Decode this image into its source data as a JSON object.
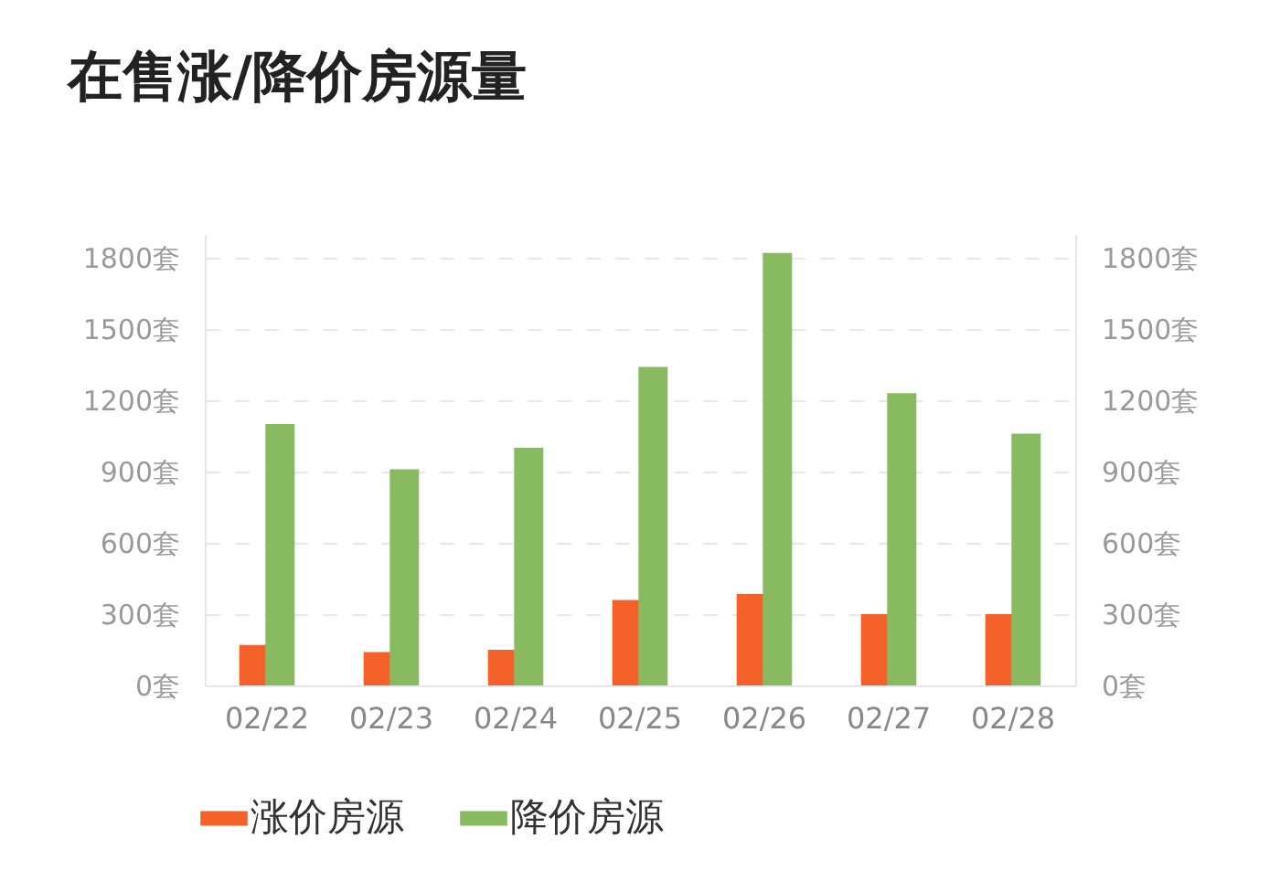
{
  "chart_data": {
    "type": "bar",
    "title": "在售涨/降价房源量",
    "categories": [
      "02/22",
      "02/23",
      "02/24",
      "02/25",
      "02/26",
      "02/27",
      "02/28"
    ],
    "series": [
      {
        "name": "涨价房源",
        "color": "#f4622a",
        "values": [
          170,
          140,
          150,
          360,
          385,
          300,
          300
        ]
      },
      {
        "name": "降价房源",
        "color": "#88bb60",
        "values": [
          1100,
          910,
          1000,
          1340,
          1820,
          1230,
          1060
        ]
      }
    ],
    "ylim": [
      0,
      1900
    ],
    "yticks": [
      {
        "value": 0,
        "label": "0套"
      },
      {
        "value": 300,
        "label": "300套"
      },
      {
        "value": 600,
        "label": "600套"
      },
      {
        "value": 900,
        "label": "900套"
      },
      {
        "value": 1200,
        "label": "1200套"
      },
      {
        "value": 1500,
        "label": "1500套"
      },
      {
        "value": 1800,
        "label": "1800套"
      }
    ],
    "y2lim": [
      0,
      1900
    ],
    "y2ticks": [
      {
        "value": 0,
        "label": "0套"
      },
      {
        "value": 300,
        "label": "300套"
      },
      {
        "value": 600,
        "label": "600套"
      },
      {
        "value": 900,
        "label": "900套"
      },
      {
        "value": 1200,
        "label": "1200套"
      },
      {
        "value": 1500,
        "label": "1500套"
      },
      {
        "value": 1800,
        "label": "1800套"
      }
    ],
    "grid": "y",
    "legend": "bottom"
  }
}
